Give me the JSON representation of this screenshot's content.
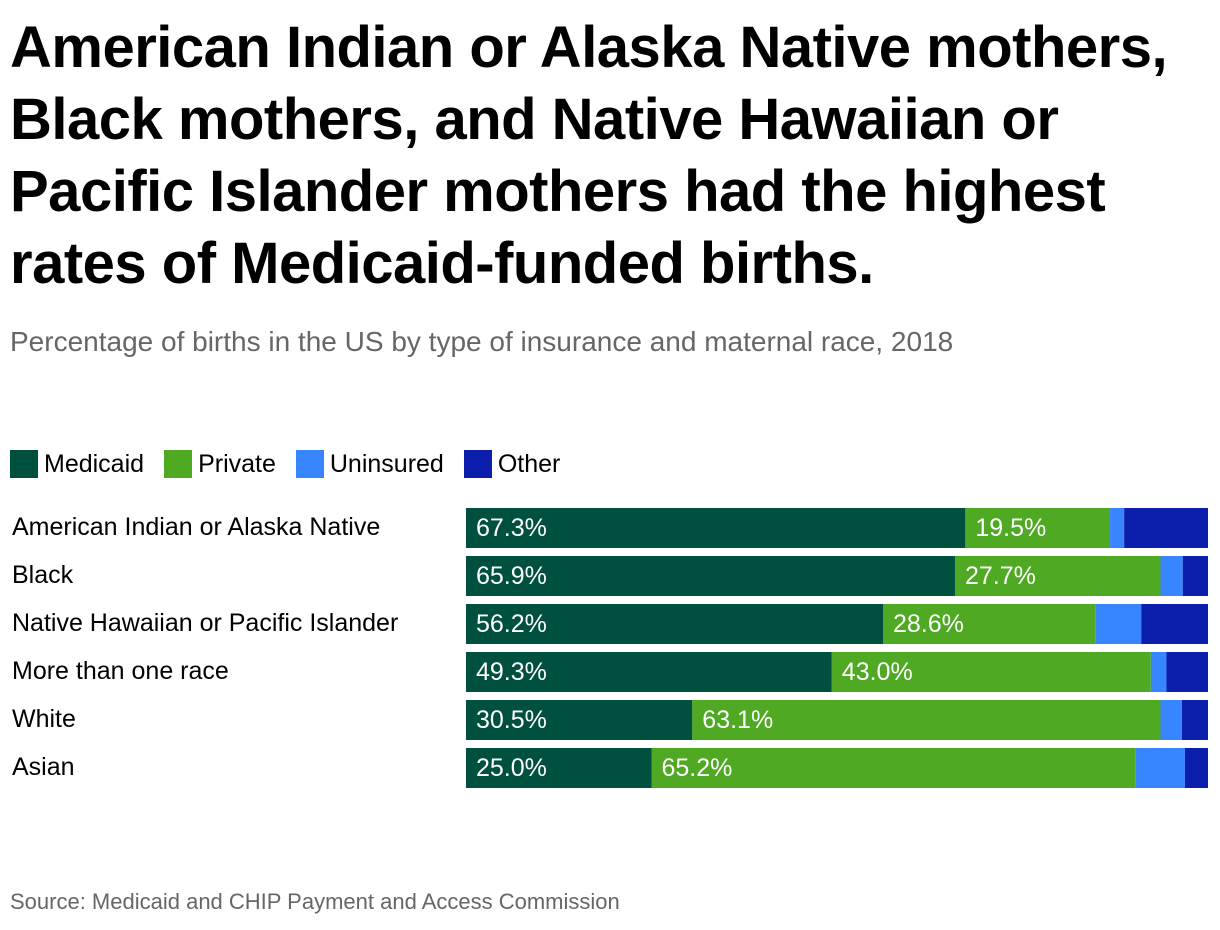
{
  "title": "American Indian or Alaska Native mothers, Black mothers, and Native Hawaiian or Pacific Islander mothers had the highest rates of Medicaid-funded births.",
  "subtitle": "Percentage of births in the US by type of insurance and maternal race, 2018",
  "source": "Source: Medicaid and CHIP Payment and Access Commission",
  "colors": {
    "medicaid": "#00503f",
    "private": "#4fa923",
    "uninsured": "#3886ff",
    "other": "#0b1eab"
  },
  "chart_data": {
    "type": "bar",
    "orientation": "horizontal",
    "stacked": true,
    "legend_position": "top-left",
    "grid": false,
    "xlim": [
      0,
      100
    ],
    "categories": [
      "American Indian or Alaska Native",
      "Black",
      "Native Hawaiian or Pacific Islander",
      "More than one race",
      "White",
      "Asian"
    ],
    "series": [
      {
        "name": "Medicaid",
        "color": "#00503f",
        "values": [
          67.3,
          65.9,
          56.2,
          49.3,
          30.5,
          25.0
        ],
        "labels": [
          "67.3%",
          "65.9%",
          "56.2%",
          "49.3%",
          "30.5%",
          "25.0%"
        ]
      },
      {
        "name": "Private",
        "color": "#4fa923",
        "values": [
          19.5,
          27.7,
          28.6,
          43.0,
          63.1,
          65.2
        ],
        "labels": [
          "19.5%",
          "27.7%",
          "28.6%",
          "43.0%",
          "63.1%",
          "65.2%"
        ]
      },
      {
        "name": "Uninsured",
        "color": "#3886ff",
        "values": [
          1.9,
          3.0,
          6.2,
          2.1,
          2.9,
          6.7
        ]
      },
      {
        "name": "Other",
        "color": "#0b1eab",
        "values": [
          11.3,
          3.4,
          9.0,
          5.6,
          3.5,
          3.1
        ]
      }
    ]
  }
}
